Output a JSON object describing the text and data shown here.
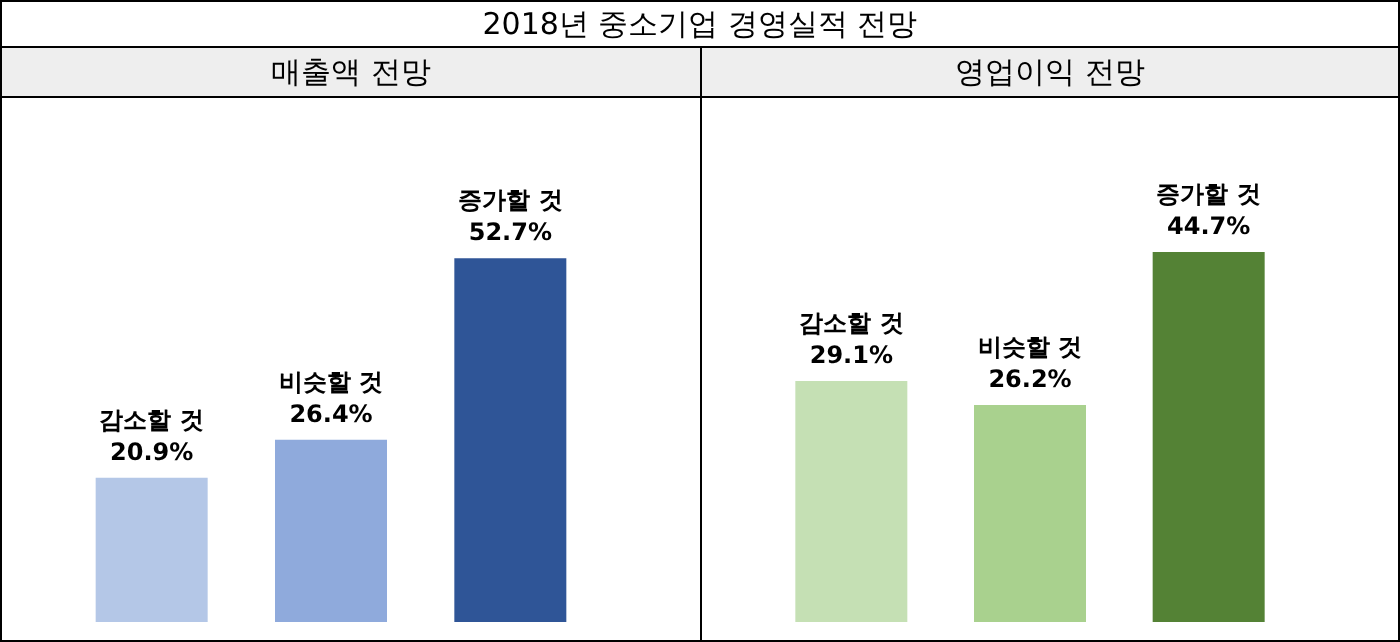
{
  "chart_data": [
    {
      "type": "bar",
      "title": "매출액 전망",
      "annotations": [
        "2018년 중소기업 경영실적 전망"
      ],
      "categories": [
        "감소할 것",
        "비슷할 것",
        "증가할 것"
      ],
      "values": [
        20.9,
        26.4,
        52.7
      ],
      "value_labels": [
        "20.9%",
        "26.4%",
        "52.7%"
      ],
      "colors": [
        "#b4c7e7",
        "#8faadc",
        "#2f5597"
      ],
      "tick_labels": false
    },
    {
      "type": "bar",
      "title": "영업이익 전망",
      "categories": [
        "감소할 것",
        "비슷할 것",
        "증가할 것"
      ],
      "values": [
        29.1,
        26.2,
        44.7
      ],
      "value_labels": [
        "29.1%",
        "26.2%",
        "44.7%"
      ],
      "colors": [
        "#c5e0b4",
        "#a9d18e",
        "#548235"
      ],
      "tick_labels": false
    }
  ]
}
